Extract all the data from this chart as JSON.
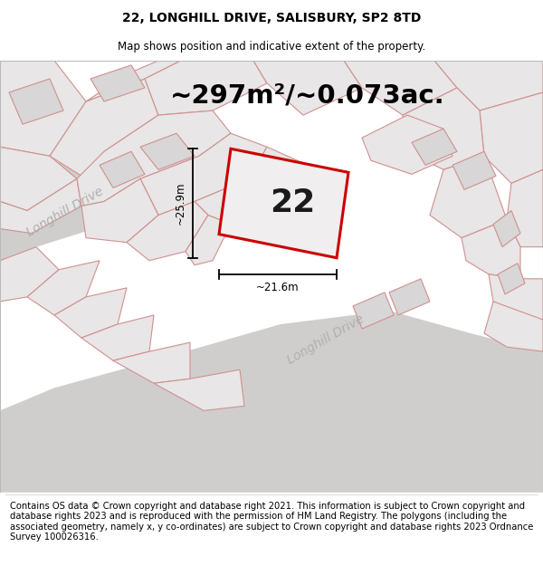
{
  "title": "22, LONGHILL DRIVE, SALISBURY, SP2 8TD",
  "subtitle": "Map shows position and indicative extent of the property.",
  "area_text": "~297m²/~0.073ac.",
  "number_label": "22",
  "dim_width": "~21.6m",
  "dim_height": "~25.9m",
  "road_label_left": "Longhill Drive",
  "road_label_bottom": "Longhill Drive",
  "footer_text": "Contains OS data © Crown copyright and database right 2021. This information is subject to Crown copyright and database rights 2023 and is reproduced with the permission of HM Land Registry. The polygons (including the associated geometry, namely x, y co-ordinates) are subject to Crown copyright and database rights 2023 Ordnance Survey 100026316.",
  "map_bg": "#eeecec",
  "plot_fill": "#e8e6e6",
  "plot_fill_dark": "#d8d6d6",
  "road_fill": "#d0cecd",
  "red_color": "#cc0000",
  "pink_line": "#d09090",
  "footer_fontsize": 7.2,
  "title_fontsize": 10,
  "subtitle_fontsize": 8.5,
  "area_fontsize": 21,
  "number_fontsize": 26,
  "dim_fontsize": 8.5,
  "road_label_fontsize": 10
}
